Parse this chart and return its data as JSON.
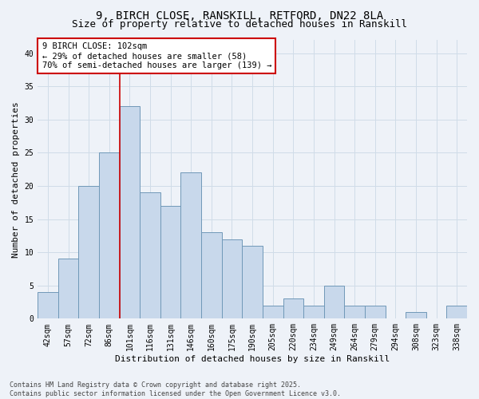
{
  "title_line1": "9, BIRCH CLOSE, RANSKILL, RETFORD, DN22 8LA",
  "title_line2": "Size of property relative to detached houses in Ranskill",
  "xlabel": "Distribution of detached houses by size in Ranskill",
  "ylabel": "Number of detached properties",
  "categories": [
    "42sqm",
    "57sqm",
    "72sqm",
    "86sqm",
    "101sqm",
    "116sqm",
    "131sqm",
    "146sqm",
    "160sqm",
    "175sqm",
    "190sqm",
    "205sqm",
    "220sqm",
    "234sqm",
    "249sqm",
    "264sqm",
    "279sqm",
    "294sqm",
    "308sqm",
    "323sqm",
    "338sqm"
  ],
  "values": [
    4,
    9,
    20,
    25,
    32,
    19,
    17,
    22,
    13,
    12,
    11,
    2,
    3,
    2,
    5,
    2,
    2,
    0,
    1,
    0,
    2
  ],
  "bar_color": "#c8d8eb",
  "bar_edge_color": "#7098b8",
  "highlight_index": 4,
  "highlight_line_color": "#cc0000",
  "annotation_text": "9 BIRCH CLOSE: 102sqm\n← 29% of detached houses are smaller (58)\n70% of semi-detached houses are larger (139) →",
  "annotation_box_color": "#ffffff",
  "annotation_box_edge_color": "#cc0000",
  "ylim": [
    0,
    42
  ],
  "yticks": [
    0,
    5,
    10,
    15,
    20,
    25,
    30,
    35,
    40
  ],
  "grid_color": "#d0dce8",
  "background_color": "#eef2f8",
  "footer_text": "Contains HM Land Registry data © Crown copyright and database right 2025.\nContains public sector information licensed under the Open Government Licence v3.0.",
  "title_fontsize": 10,
  "subtitle_fontsize": 9,
  "axis_label_fontsize": 8,
  "tick_fontsize": 7,
  "annotation_fontsize": 7.5,
  "footer_fontsize": 6
}
